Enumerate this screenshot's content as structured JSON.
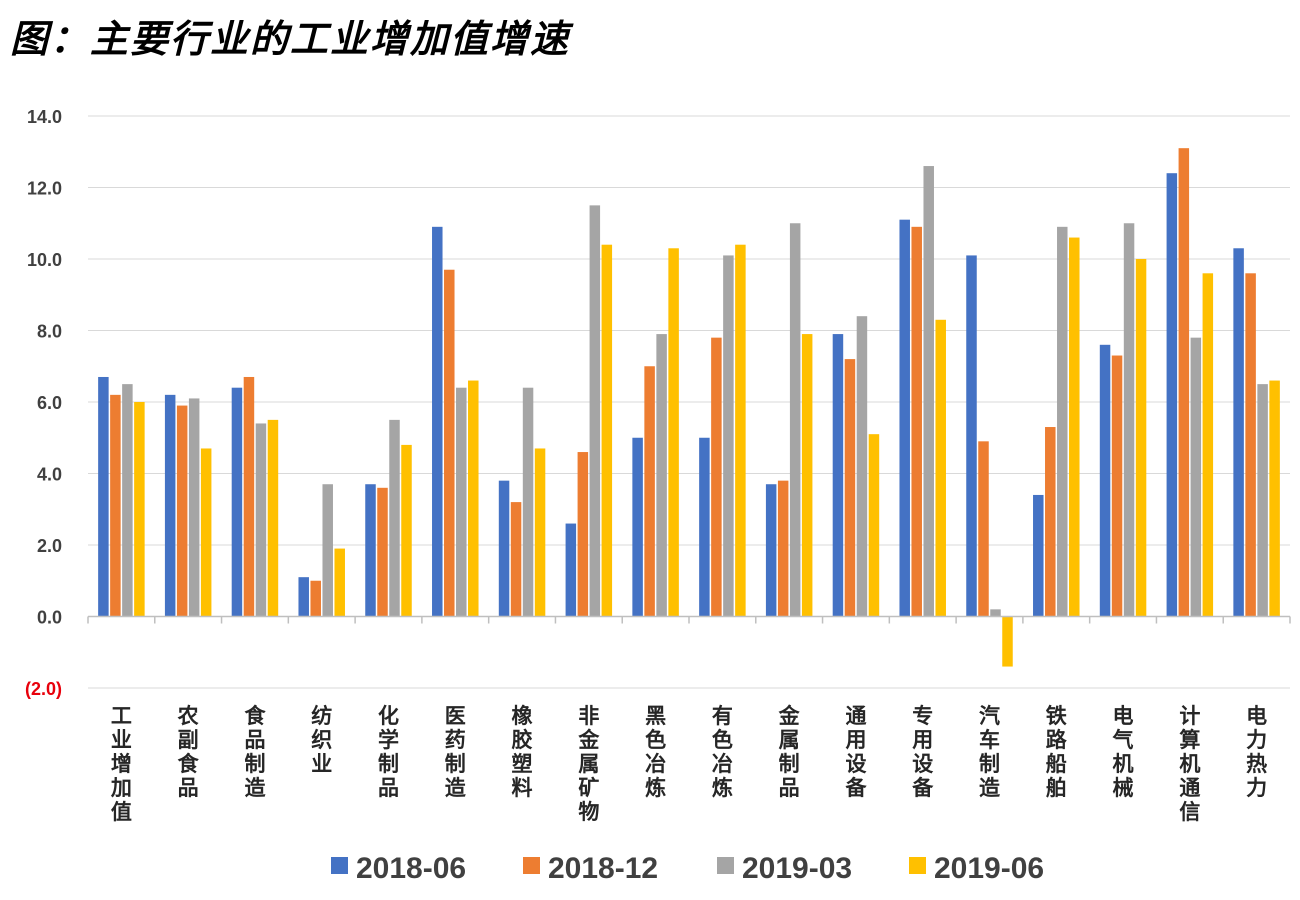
{
  "title": "图：主要行业的工业增加值增速",
  "chart_data": {
    "type": "bar",
    "title": "图：主要行业的工业增加值增速",
    "xlabel": "",
    "ylabel": "",
    "ylim": [
      -2,
      14
    ],
    "yticks": [
      14,
      12,
      10,
      8,
      6,
      4,
      2,
      0,
      -2
    ],
    "ytick_labels": [
      "14.0",
      "12.0",
      "10.0",
      "8.0",
      "6.0",
      "4.0",
      "2.0",
      "0.0",
      "(2.0)"
    ],
    "negative_tick_color": "#e8000b",
    "grid": true,
    "legend_position": "bottom",
    "categories": [
      "工业增加值",
      "农副食品",
      "食品制造",
      "纺织业",
      "化学制品",
      "医药制造",
      "橡胶塑料",
      "非金属矿物",
      "黑色冶炼",
      "有色冶炼",
      "金属制品",
      "通用设备",
      "专用设备",
      "汽车制造",
      "铁路船舶",
      "电气机械",
      "计算机通信",
      "电力热力"
    ],
    "series": [
      {
        "name": "2018-06",
        "color": "#4472c4",
        "values": [
          6.7,
          6.2,
          6.4,
          1.1,
          3.7,
          10.9,
          3.8,
          2.6,
          5.0,
          5.0,
          3.7,
          7.9,
          11.1,
          10.1,
          3.4,
          7.6,
          12.4,
          10.3
        ]
      },
      {
        "name": "2018-12",
        "color": "#ed7d31",
        "values": [
          6.2,
          5.9,
          6.7,
          1.0,
          3.6,
          9.7,
          3.2,
          4.6,
          7.0,
          7.8,
          3.8,
          7.2,
          10.9,
          4.9,
          5.3,
          7.3,
          13.1,
          9.6
        ]
      },
      {
        "name": "2019-03",
        "color": "#a5a5a5",
        "values": [
          6.5,
          6.1,
          5.4,
          3.7,
          5.5,
          6.4,
          6.4,
          11.5,
          7.9,
          10.1,
          11.0,
          8.4,
          12.6,
          0.2,
          10.9,
          11.0,
          7.8,
          6.5
        ]
      },
      {
        "name": "2019-06",
        "color": "#ffc000",
        "values": [
          6.0,
          4.7,
          5.5,
          1.9,
          4.8,
          6.6,
          4.7,
          10.4,
          10.3,
          10.4,
          7.9,
          5.1,
          8.3,
          -1.4,
          10.6,
          10.0,
          9.6,
          6.6
        ]
      }
    ]
  }
}
